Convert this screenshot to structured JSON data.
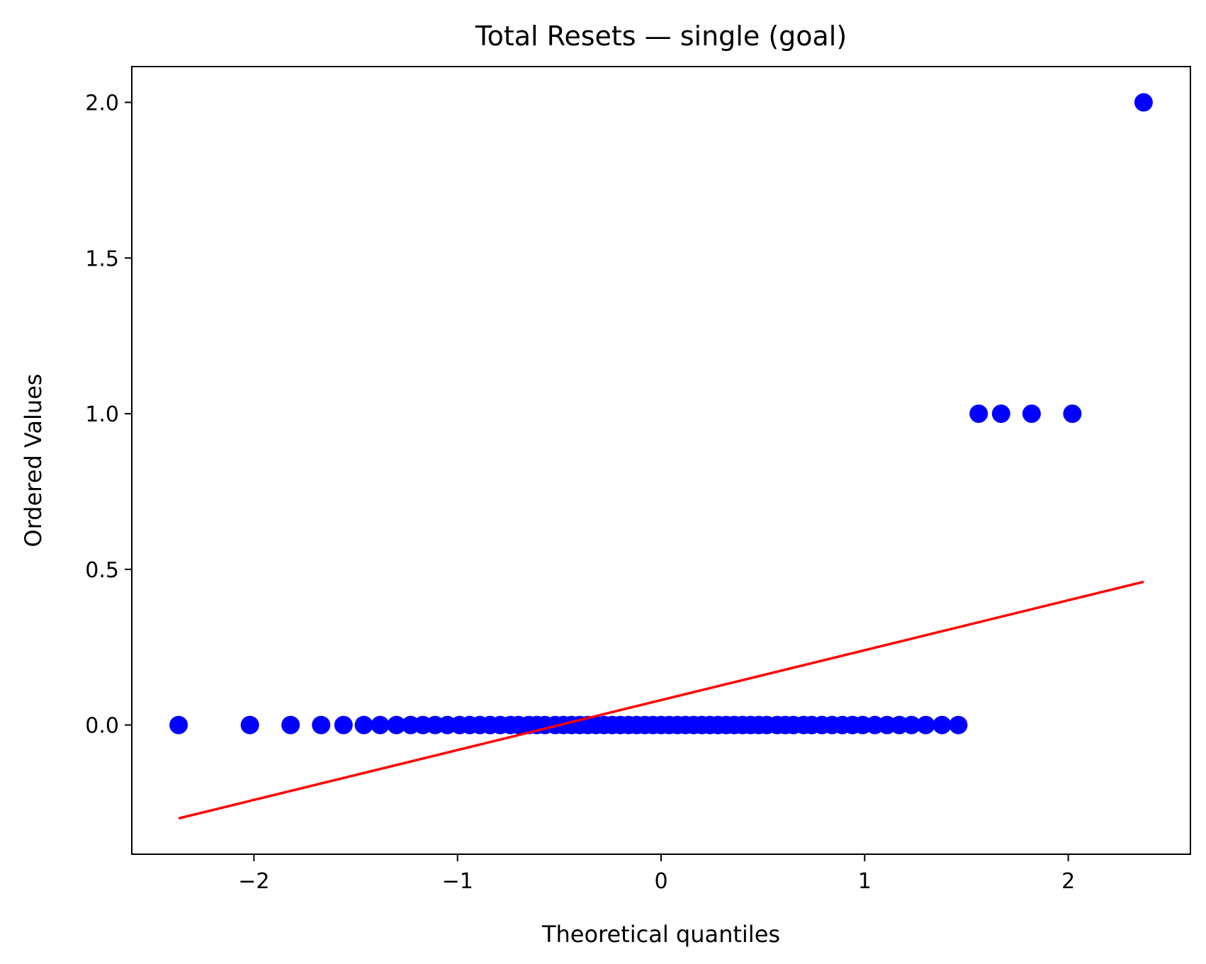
{
  "chart_data": {
    "type": "scatter",
    "title": "Total Resets — single (goal)",
    "xlabel": "Theoretical quantiles",
    "ylabel": "Ordered Values",
    "xlim": [
      -2.6,
      2.6
    ],
    "ylim": [
      -0.415,
      2.115
    ],
    "xticks": [
      -2,
      -1,
      0,
      1,
      2
    ],
    "xtick_labels": [
      "−2",
      "−1",
      "0",
      "1",
      "2"
    ],
    "yticks": [
      0.0,
      0.5,
      1.0,
      1.5,
      2.0
    ],
    "ytick_labels": [
      "0.0",
      "0.5",
      "1.0",
      "1.5",
      "2.0"
    ],
    "grid": false,
    "colors": {
      "points": "#0000ff",
      "fit_line": "#ff0000"
    },
    "series": [
      {
        "kind": "points",
        "x": [
          -2.37,
          -2.02,
          -1.82,
          -1.67,
          -1.56,
          -1.46,
          -1.38,
          -1.3,
          -1.23,
          -1.17,
          -1.11,
          -1.05,
          -0.99,
          -0.94,
          -0.89,
          -0.84,
          -0.79,
          -0.74,
          -0.7,
          -0.65,
          -0.61,
          -0.57,
          -0.52,
          -0.48,
          -0.44,
          -0.4,
          -0.36,
          -0.32,
          -0.28,
          -0.24,
          -0.2,
          -0.16,
          -0.12,
          -0.08,
          -0.04,
          0.0,
          0.04,
          0.08,
          0.12,
          0.16,
          0.2,
          0.24,
          0.28,
          0.32,
          0.36,
          0.4,
          0.44,
          0.48,
          0.52,
          0.57,
          0.61,
          0.65,
          0.7,
          0.74,
          0.79,
          0.84,
          0.89,
          0.94,
          0.99,
          1.05,
          1.11,
          1.17,
          1.23,
          1.3,
          1.38,
          1.46,
          1.56,
          1.67,
          1.82,
          2.02,
          2.37
        ],
        "y": [
          0,
          0,
          0,
          0,
          0,
          0,
          0,
          0,
          0,
          0,
          0,
          0,
          0,
          0,
          0,
          0,
          0,
          0,
          0,
          0,
          0,
          0,
          0,
          0,
          0,
          0,
          0,
          0,
          0,
          0,
          0,
          0,
          0,
          0,
          0,
          0,
          0,
          0,
          0,
          0,
          0,
          0,
          0,
          0,
          0,
          0,
          0,
          0,
          0,
          0,
          0,
          0,
          0,
          0,
          0,
          0,
          0,
          0,
          0,
          0,
          0,
          0,
          0,
          0,
          0,
          0,
          1,
          1,
          1,
          1,
          2
        ]
      },
      {
        "kind": "line",
        "x": [
          -2.37,
          2.37
        ],
        "y": [
          -0.3,
          0.46
        ]
      }
    ]
  }
}
